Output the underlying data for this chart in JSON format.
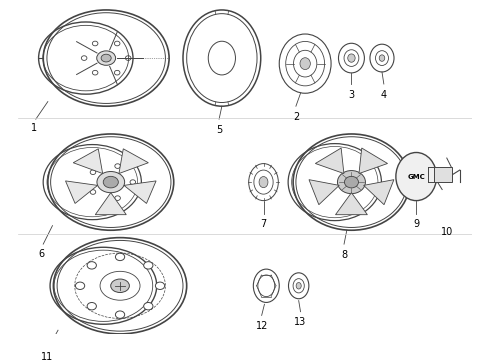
{
  "background_color": "#ffffff",
  "line_color": "#444444",
  "text_color": "#000000",
  "fig_width": 4.9,
  "fig_height": 3.6,
  "dpi": 100
}
